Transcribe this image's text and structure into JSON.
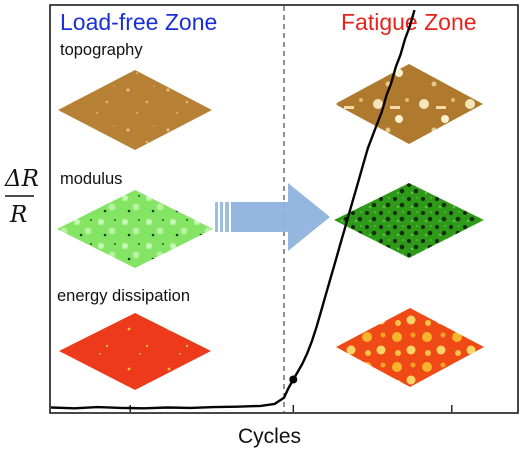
{
  "chart_data": {
    "type": "line",
    "xlabel": "Cycles",
    "ylabel": "ΔR/R",
    "ylabel_numerator": "ΔR",
    "ylabel_denominator": "R",
    "x_ticks": [
      "",
      "",
      "",
      ""
    ],
    "grid": false,
    "series": [
      {
        "x": [
          0,
          0.05,
          0.1,
          0.15,
          0.2,
          0.25,
          0.3,
          0.35,
          0.4,
          0.45,
          0.48,
          0.5,
          0.51,
          0.52,
          0.53,
          0.54,
          0.55,
          0.56,
          0.57,
          0.58,
          0.59,
          0.6,
          0.61,
          0.62,
          0.63,
          0.64,
          0.65,
          0.66,
          0.67,
          0.68,
          0.69,
          0.7,
          0.71,
          0.72,
          0.73,
          0.74,
          0.75,
          0.76,
          0.77,
          0.78
        ],
        "values": [
          0.011,
          0.009,
          0.012,
          0.01,
          0.009,
          0.011,
          0.01,
          0.012,
          0.013,
          0.015,
          0.02,
          0.035,
          0.06,
          0.08,
          0.1,
          0.12,
          0.145,
          0.175,
          0.21,
          0.25,
          0.29,
          0.33,
          0.37,
          0.41,
          0.45,
          0.49,
          0.53,
          0.57,
          0.61,
          0.65,
          0.68,
          0.71,
          0.74,
          0.78,
          0.81,
          0.85,
          0.88,
          0.92,
          0.95,
          0.99
        ]
      }
    ],
    "vline_x": 0.5,
    "zones": [
      {
        "label": "Load-free Zone",
        "color": "#1a2fd6"
      },
      {
        "label": "Fatigue Zone",
        "color": "#e8231c"
      }
    ],
    "panels": {
      "topography": "topography",
      "modulus": "modulus",
      "energy": "energy dissipation"
    },
    "colors": {
      "topography": "#b88338",
      "modulus": "#6edb4a",
      "modulus_fatigue": "#2a8a12",
      "energy": "#ee3a1a",
      "arrow": "#8fb3dd"
    }
  }
}
